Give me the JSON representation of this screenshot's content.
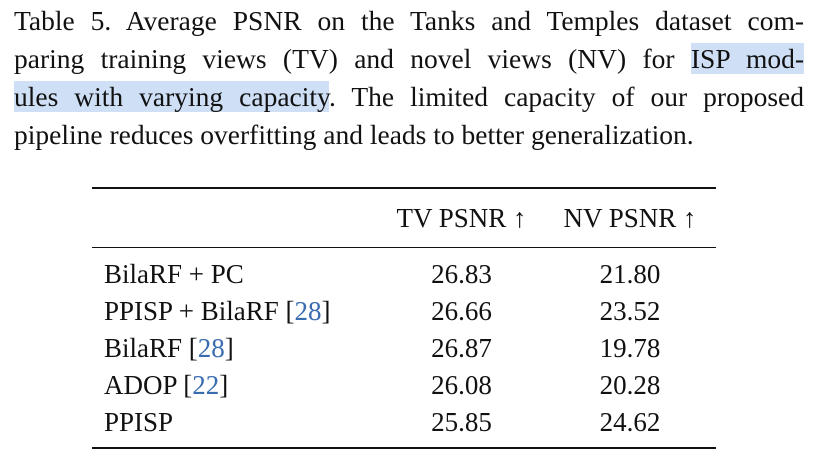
{
  "caption": {
    "line1": "Table 5.  Average PSNR on the Tanks and Temples dataset com-",
    "line2_pre": "paring training views (TV) and novel views (NV) for ",
    "line2_hl": "ISP mod-",
    "line3_hl": "ules with varying capacity",
    "line3_post": ".  The limited capacity of our proposed",
    "line4": "pipeline reduces overfitting and leads to better generalization."
  },
  "table": {
    "headers": [
      "",
      "TV PSNR ↑",
      "NV PSNR ↑"
    ],
    "rows": [
      {
        "name": "BilaRF + PC",
        "ref": "",
        "tv": "26.83",
        "nv": "21.80"
      },
      {
        "name": "PPISP + BilaRF [",
        "ref": "28",
        "ref_close": "]",
        "tv": "26.66",
        "nv": "23.52"
      },
      {
        "name": "BilaRF [",
        "ref": "28",
        "ref_close": "]",
        "tv": "26.87",
        "nv": "19.78"
      },
      {
        "name": "ADOP [",
        "ref": "22",
        "ref_close": "]",
        "tv": "26.08",
        "nv": "20.28"
      },
      {
        "name": "PPISP",
        "ref": "",
        "tv": "25.85",
        "nv": "24.62"
      }
    ]
  }
}
